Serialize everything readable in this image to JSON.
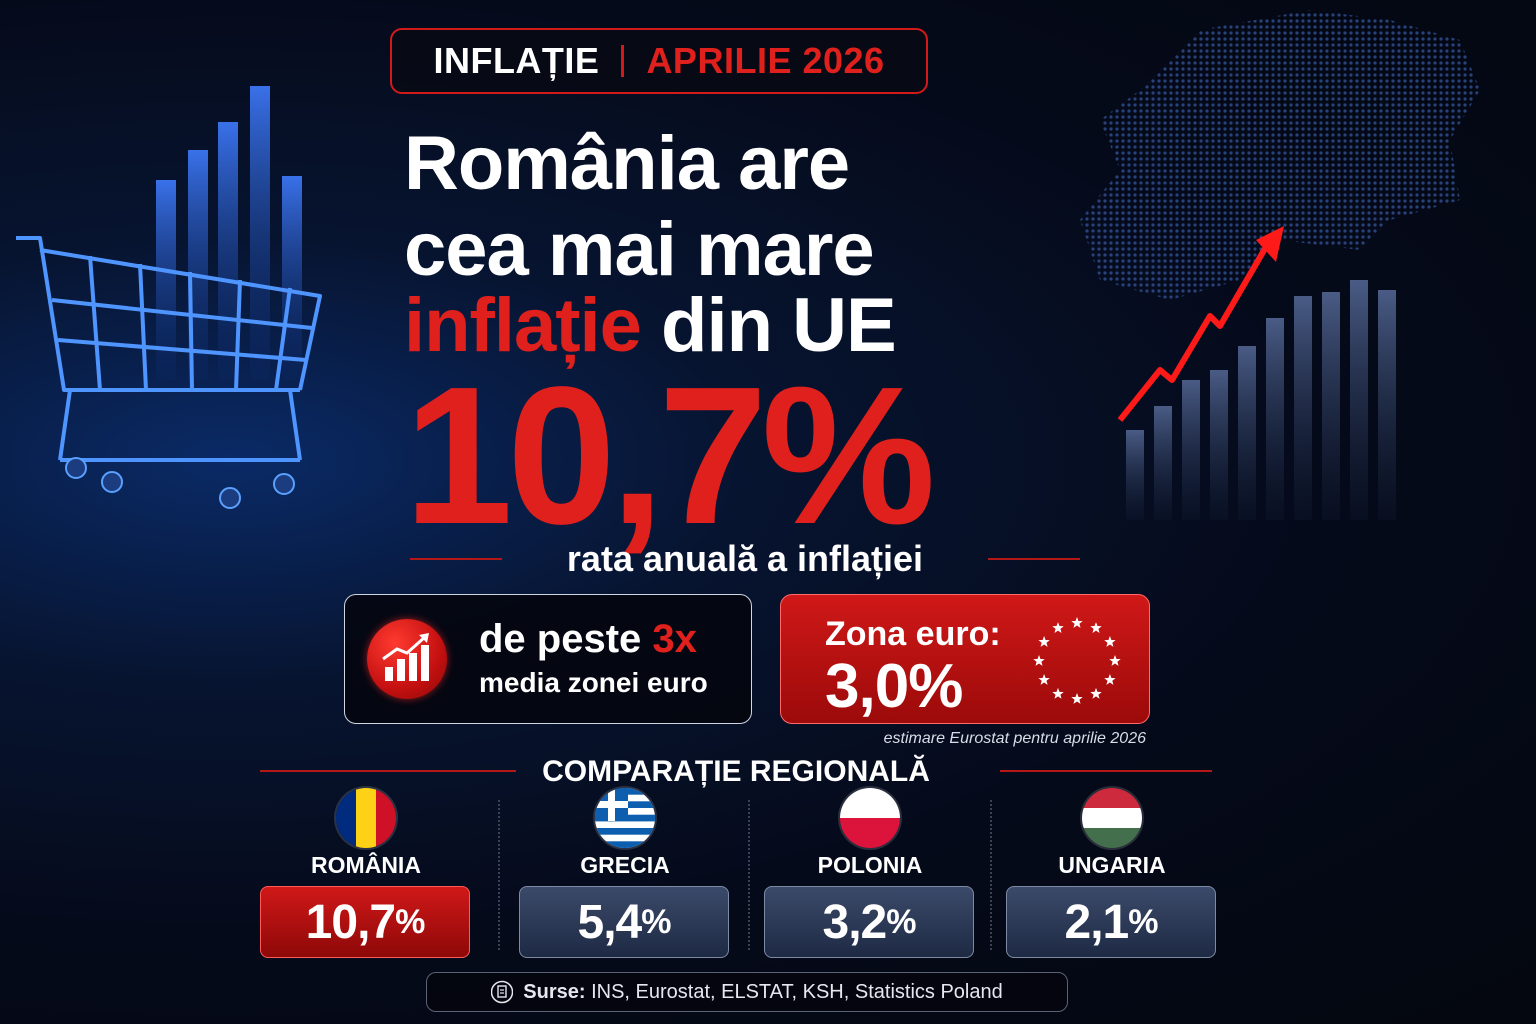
{
  "header": {
    "topic": "INFLAȚIE",
    "period": "APRILIE 2026"
  },
  "headline": {
    "line1": "România are",
    "line2": "cea mai mare",
    "line3_red": "inflație",
    "line3_rest": " din UE"
  },
  "main_rate": {
    "value": "10,7%",
    "caption": "rata anuală a inflației"
  },
  "multiple_card": {
    "line1_prefix": "de peste ",
    "line1_highlight": "3x",
    "line2": "media zonei euro",
    "icon": "growth-chart-icon"
  },
  "euro_card": {
    "label": "Zona euro:",
    "value": "3,0%",
    "icon": "eu-stars-icon",
    "note": "estimare Eurostat pentru aprilie 2026"
  },
  "regional": {
    "title": "COMPARAȚIE REGIONALĂ",
    "countries": [
      {
        "name": "ROMÂNIA",
        "value": "10,7",
        "unit": "%",
        "flag": "romania-flag-icon",
        "highlight": true
      },
      {
        "name": "GRECIA",
        "value": "5,4",
        "unit": "%",
        "flag": "greece-flag-icon",
        "highlight": false
      },
      {
        "name": "POLONIA",
        "value": "3,2",
        "unit": "%",
        "flag": "poland-flag-icon",
        "highlight": false
      },
      {
        "name": "UNGARIA",
        "value": "2,1",
        "unit": "%",
        "flag": "hungary-flag-icon",
        "highlight": false
      }
    ]
  },
  "sources": {
    "label": "Surse:",
    "text": " INS, Eurostat, ELSTAT, KSH, Statistics Poland",
    "icon": "document-icon"
  },
  "colors": {
    "accent_red": "#e0201c",
    "background": "#050a1a",
    "card_blue": "#2a3856"
  }
}
